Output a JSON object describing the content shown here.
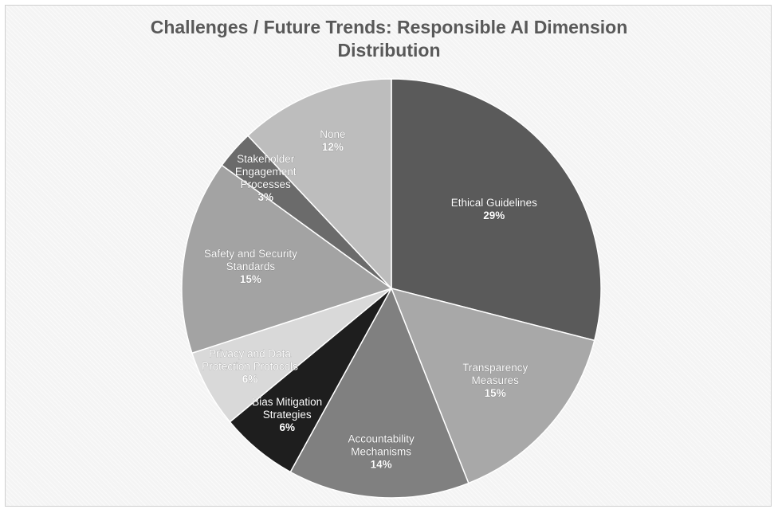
{
  "chart_data": {
    "type": "pie",
    "title": "Challenges / Future Trends: Responsible AI Dimension Distribution",
    "title_lines": [
      "Challenges / Future Trends: Responsible AI Dimension",
      "Distribution"
    ],
    "slices": [
      {
        "label": "Ethical Guidelines",
        "label_lines": [
          "Ethical Guidelines"
        ],
        "value": 29,
        "value_label": "29%",
        "color": "#5a5a5a"
      },
      {
        "label": "Transparency Measures",
        "label_lines": [
          "Transparency",
          "Measures"
        ],
        "value": 15,
        "value_label": "15%",
        "color": "#a8a8a8"
      },
      {
        "label": "Accountability Mechanisms",
        "label_lines": [
          "Accountability",
          "Mechanisms"
        ],
        "value": 14,
        "value_label": "14%",
        "color": "#808080"
      },
      {
        "label": "Bias Mitigation Strategies",
        "label_lines": [
          "Bias Mitigation",
          "Strategies"
        ],
        "value": 6,
        "value_label": "6%",
        "color": "#1e1e1e"
      },
      {
        "label": "Privacy and Data Protection Protocols",
        "label_lines": [
          "Privacy and Data",
          "Protection Protocols"
        ],
        "value": 6,
        "value_label": "6%",
        "color": "#d9d9d9"
      },
      {
        "label": "Safety and Security Standards",
        "label_lines": [
          "Safety and Security",
          "Standards"
        ],
        "value": 15,
        "value_label": "15%",
        "color": "#a3a3a3"
      },
      {
        "label": "Stakeholder Engagement Processes",
        "label_lines": [
          "Stakeholder",
          "Engagement",
          "Processes"
        ],
        "value": 3,
        "value_label": "3%",
        "color": "#6b6b6b"
      },
      {
        "label": "None",
        "label_lines": [
          "None"
        ],
        "value": 12,
        "value_label": "12%",
        "color": "#bdbdbd"
      }
    ],
    "start_angle": "12 o'clock",
    "direction": "clockwise",
    "legend": "none",
    "data_labels": "inside"
  }
}
